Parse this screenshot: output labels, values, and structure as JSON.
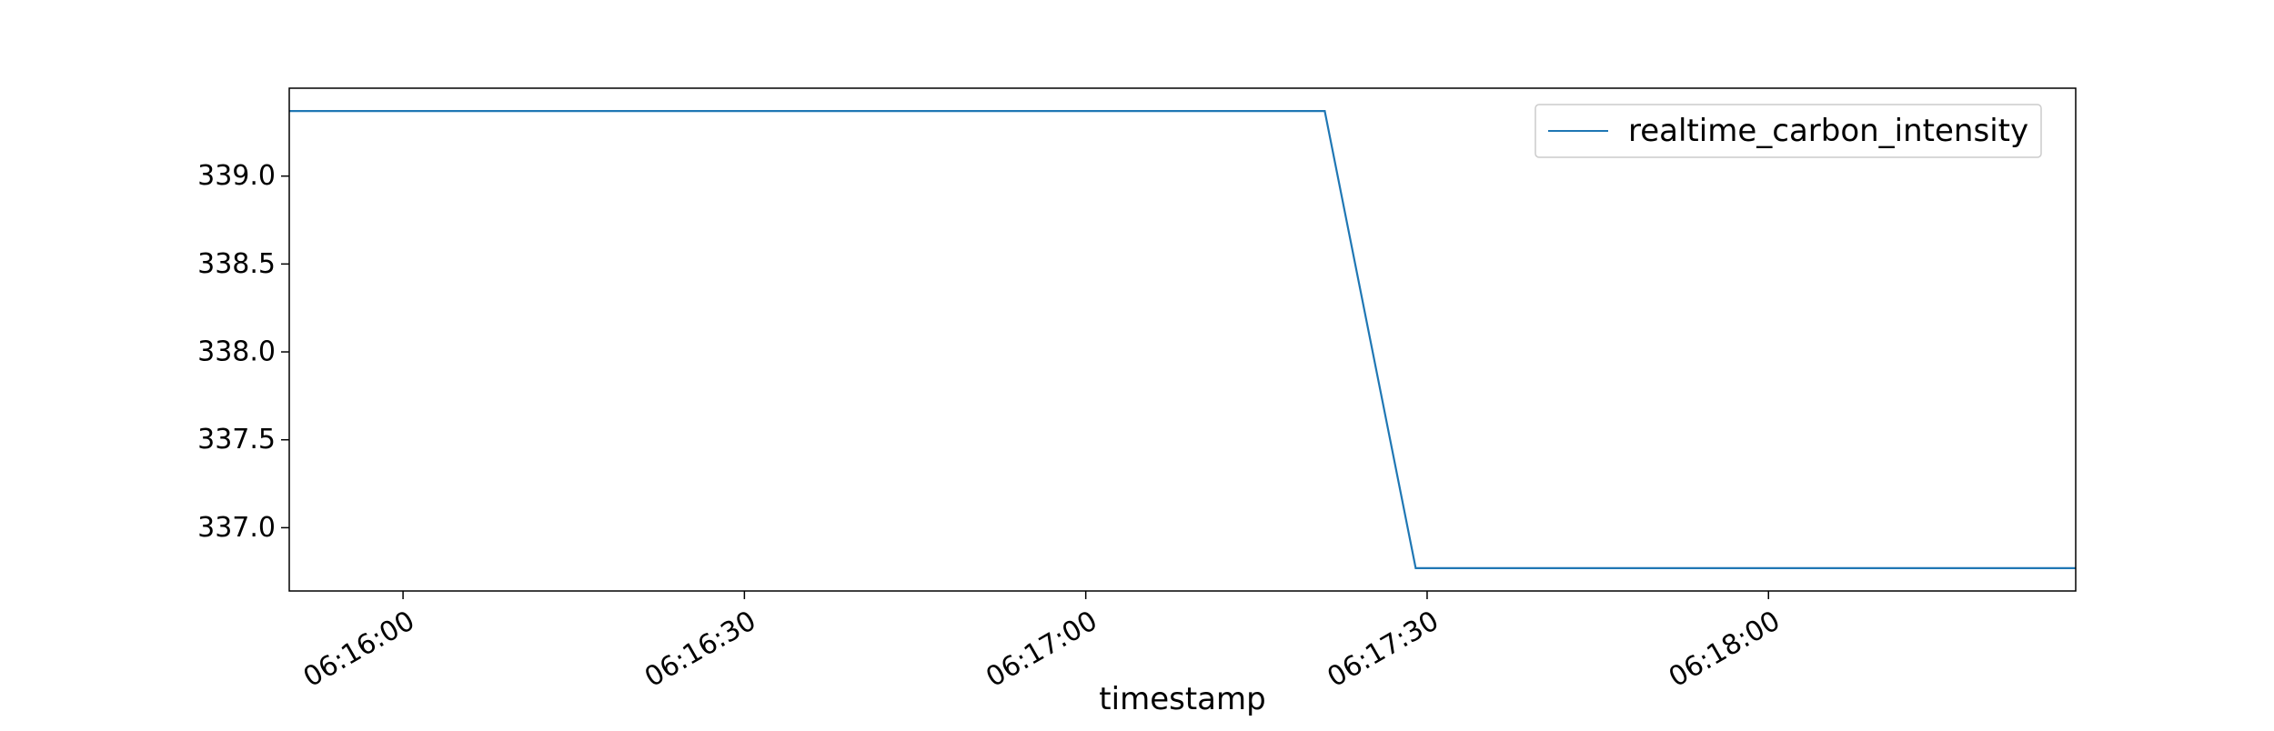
{
  "chart_data": {
    "type": "line",
    "title": "",
    "xlabel": "timestamp",
    "ylabel": "",
    "x_unit": "time (HH:MM:SS)",
    "x_ticks": [
      "06:16:00",
      "06:16:30",
      "06:17:00",
      "06:17:30",
      "06:18:00"
    ],
    "y_ticks": [
      "337.0",
      "337.5",
      "338.0",
      "338.5",
      "339.0"
    ],
    "xlim": [
      "06:15:50",
      "06:18:27"
    ],
    "ylim": [
      336.64,
      339.5
    ],
    "grid": false,
    "legend_position": "top-right",
    "series": [
      {
        "name": "realtime_carbon_intensity",
        "color": "#1f77b4",
        "x": [
          "06:15:50",
          "06:17:21",
          "06:17:29",
          "06:18:27"
        ],
        "y": [
          339.37,
          339.37,
          336.77,
          336.77
        ]
      }
    ]
  }
}
